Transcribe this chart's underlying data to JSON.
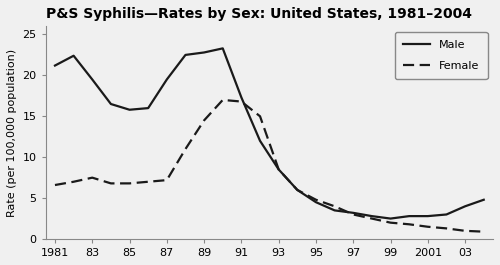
{
  "title": "P&S Syphilis—Rates by Sex: United States, 1981–2004",
  "ylabel": "Rate (per 100,000 population)",
  "years": [
    1981,
    1982,
    1983,
    1984,
    1985,
    1986,
    1987,
    1988,
    1989,
    1990,
    1991,
    1992,
    1993,
    1994,
    1995,
    1996,
    1997,
    1998,
    1999,
    2000,
    2001,
    2002,
    2003,
    2004
  ],
  "male": [
    21.2,
    22.4,
    19.5,
    16.5,
    15.8,
    16.0,
    19.5,
    22.5,
    22.8,
    23.3,
    17.3,
    12.0,
    8.5,
    6.0,
    4.5,
    3.5,
    3.2,
    2.8,
    2.5,
    2.8,
    2.8,
    3.0,
    4.0,
    4.8
  ],
  "female": [
    6.6,
    7.0,
    7.5,
    6.8,
    6.8,
    7.0,
    7.2,
    11.0,
    14.5,
    17.0,
    16.8,
    15.0,
    8.5,
    6.0,
    4.8,
    4.0,
    3.0,
    2.5,
    2.0,
    1.8,
    1.5,
    1.3,
    1.0,
    0.9
  ],
  "xtick_labels": [
    "1981",
    "83",
    "85",
    "87",
    "89",
    "91",
    "93",
    "95",
    "97",
    "99",
    "2001",
    "03"
  ],
  "xtick_positions": [
    1981,
    1983,
    1985,
    1987,
    1989,
    1991,
    1993,
    1995,
    1997,
    1999,
    2001,
    2003
  ],
  "ylim": [
    0,
    26
  ],
  "yticks": [
    0,
    5,
    10,
    15,
    20,
    25
  ],
  "xlim": [
    1980.5,
    2004.5
  ],
  "line_color": "#1a1a1a",
  "background_color": "#f0f0f0",
  "legend_labels": [
    "Male",
    "Female"
  ],
  "title_fontsize": 10,
  "axis_fontsize": 8,
  "tick_fontsize": 8,
  "linewidth": 1.6
}
